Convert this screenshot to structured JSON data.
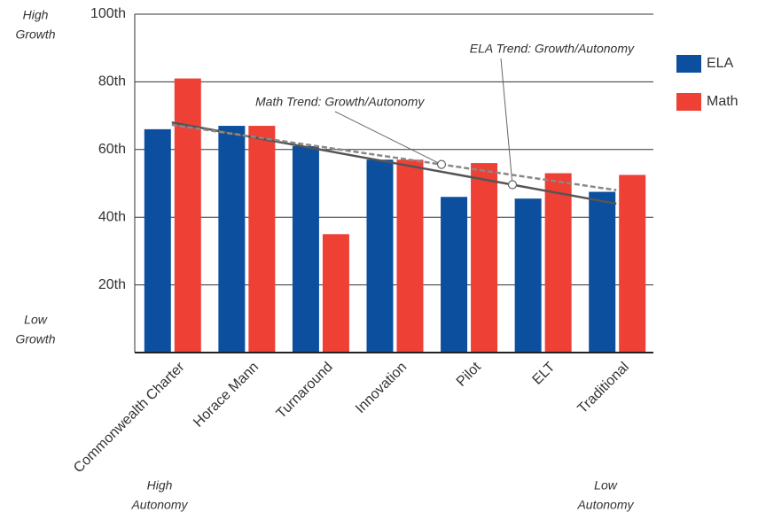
{
  "chart_data": {
    "type": "bar",
    "categories": [
      "Commonwealth Charter",
      "Horace Mann",
      "Turnaround",
      "Innovation",
      "Pilot",
      "ELT",
      "Traditional"
    ],
    "series": [
      {
        "name": "ELA",
        "color": "#0b4f9e",
        "values": [
          66,
          67,
          61,
          57,
          46,
          45.5,
          47.5
        ]
      },
      {
        "name": "Math",
        "color": "#ee4035",
        "values": [
          81,
          67,
          35,
          57,
          56,
          53,
          52.5
        ]
      }
    ],
    "trends": [
      {
        "name": "ELA Trend: Growth/Autonomy",
        "color": "#555555",
        "dashed": false,
        "values": [
          68,
          44
        ]
      },
      {
        "name": "Math Trend: Growth/Autonomy",
        "color": "#888888",
        "dashed": true,
        "values": [
          67.3,
          48
        ]
      }
    ],
    "ylim": [
      0,
      100
    ],
    "yticks": [
      {
        "value": 20,
        "label": "20th"
      },
      {
        "value": 40,
        "label": "40th"
      },
      {
        "value": 60,
        "label": "60th"
      },
      {
        "value": 80,
        "label": "80th"
      },
      {
        "value": 100,
        "label": "100th"
      }
    ],
    "grid": true,
    "y_high_label": [
      "High",
      "Growth"
    ],
    "y_low_label": [
      "Low",
      "Growth"
    ],
    "x_left_label": [
      "High",
      "Autonomy"
    ],
    "x_right_label": [
      "Low",
      "Autonomy"
    ]
  }
}
